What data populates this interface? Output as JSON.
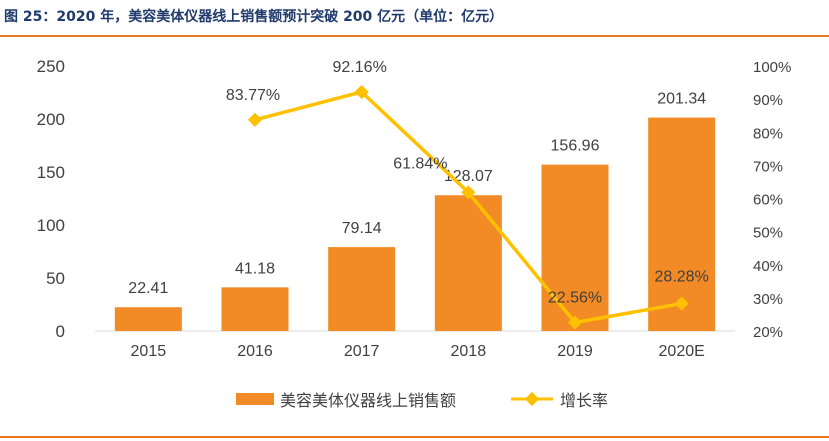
{
  "caption": "图 25：2020 年，美容美体仪器线上销售额预计突破 200 亿元（单位：亿元）",
  "colors": {
    "bar": "#f28a25",
    "line": "#ffc000",
    "rule": "#e8781c",
    "title": "#1f3a6b"
  },
  "chart_data": {
    "type": "bar",
    "categories": [
      "2015",
      "2016",
      "2017",
      "2018",
      "2019",
      "2020E"
    ],
    "series": [
      {
        "name": "美容美体仪器线上销售额",
        "type": "bar",
        "axis": "left",
        "values": [
          22.41,
          41.18,
          79.14,
          128.07,
          156.96,
          201.34
        ],
        "labels": [
          "22.41",
          "41.18",
          "79.14",
          "128.07",
          "156.96",
          "201.34"
        ]
      },
      {
        "name": "增长率",
        "type": "line",
        "axis": "right",
        "values": [
          null,
          83.77,
          92.16,
          61.84,
          22.56,
          28.28
        ],
        "labels": [
          "",
          "83.77%",
          "92.16%",
          "61.84%",
          "22.56%",
          "28.28%"
        ]
      }
    ],
    "y_left": {
      "ylim": [
        0,
        250
      ],
      "ticks": [
        "0",
        "50",
        "100",
        "150",
        "200",
        "250"
      ]
    },
    "y_right": {
      "ylim": [
        20,
        100
      ],
      "ticks": [
        "20%",
        "30%",
        "40%",
        "50%",
        "60%",
        "70%",
        "80%",
        "90%",
        "100%"
      ]
    },
    "legend_position": "bottom-center",
    "grid": false
  }
}
